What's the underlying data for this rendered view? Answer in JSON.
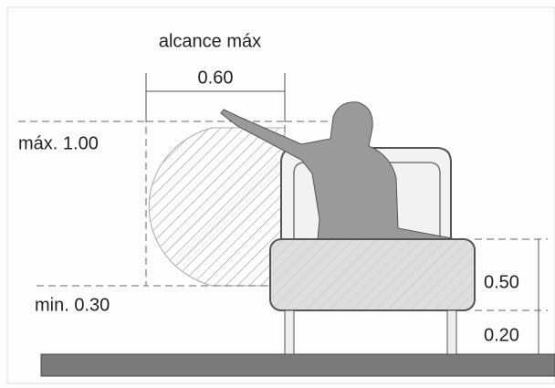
{
  "labels": {
    "title": "alcance máx",
    "width": "0.60",
    "max": "máx. 1.00",
    "min": "min. 0.30",
    "bed_height": "0.50",
    "leg_height": "0.20"
  }
}
